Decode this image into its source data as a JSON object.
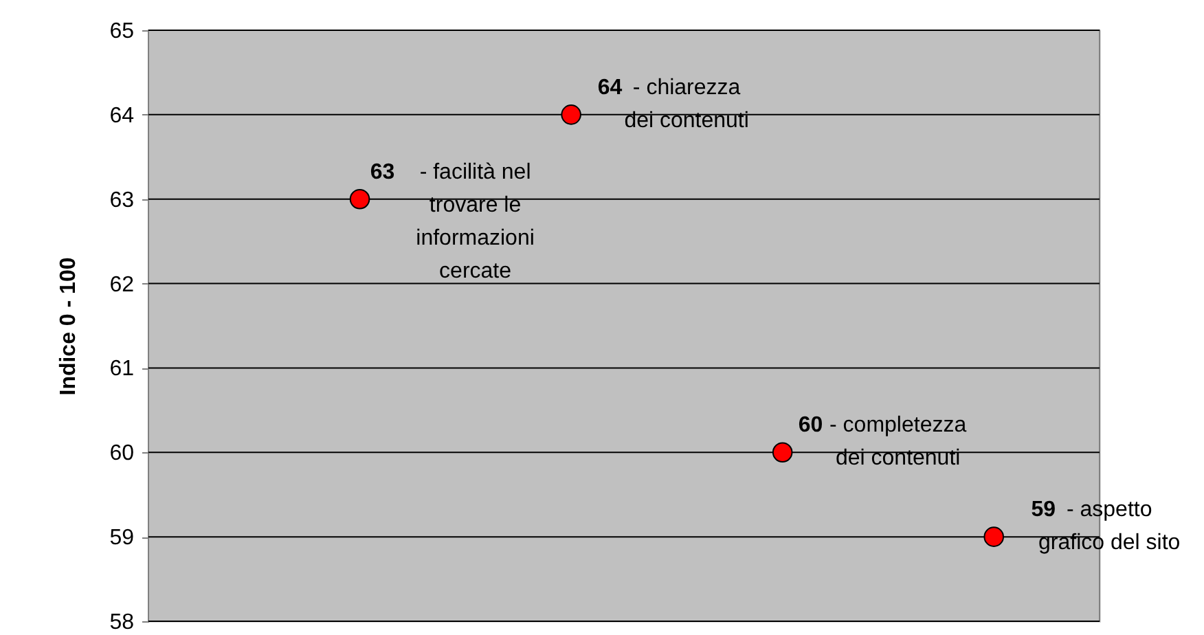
{
  "chart_data": {
    "type": "scatter",
    "ylabel": "Indice 0 - 100",
    "categories": [
      null,
      null,
      null,
      null
    ],
    "series": [
      {
        "color": "#ff0000",
        "values": [
          63,
          64,
          60,
          59
        ]
      }
    ],
    "ylim": [
      58,
      65
    ],
    "yticks": [
      58,
      59,
      60,
      61,
      62,
      63,
      64,
      65
    ],
    "grid": "y",
    "marker": "circle",
    "data_labels": true,
    "annotations": [
      "- facilità nel trovare le informazioni cercate",
      "- chiarezza dei contenuti",
      "- completezza dei contenuti",
      "- aspetto grafico del sito"
    ]
  }
}
